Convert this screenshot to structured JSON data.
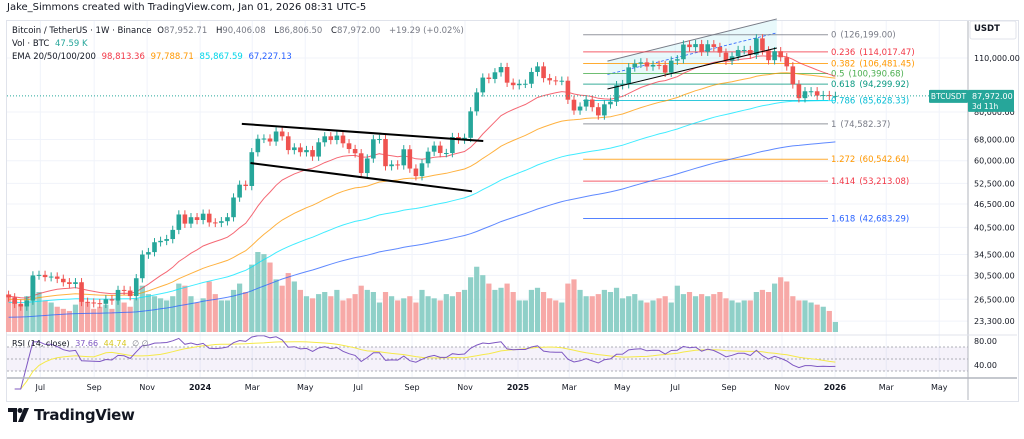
{
  "credit": "Jake_Simmons created with TradingView.com, Jan 01, 2026 08:31 UTC-5",
  "legend": {
    "symbol": "Bitcoin / TetherUS · 1W · Binance",
    "o_label": "O",
    "o": "87,952.71",
    "h_label": "H",
    "h": "90,406.08",
    "l_label": "L",
    "l": "86,806.50",
    "c_label": "C",
    "c": "87,972.00",
    "change": "+19.29 (+0.02%)",
    "vol_label": "Vol · BTC",
    "vol": "47.59 K",
    "ema_label": "EMA 20/50/100/200",
    "ema20": "98,813.36",
    "ema50": "97,788.71",
    "ema100": "85,867.59",
    "ema200": "67,227.13",
    "rsi_label": "RSI (14, close)",
    "rsi": "37.66",
    "rsi_ma": "44.74",
    "rsi_extra": "∅ ∅"
  },
  "currency": "USDT",
  "last_price": {
    "symbol": "BTCUSDT",
    "price": "87,972.00",
    "countdown": "3d 11h"
  },
  "logo": "TradingView",
  "colors": {
    "up": "#26a69a",
    "down": "#ef5350",
    "ema20": "#f23645",
    "ema50": "#ff9800",
    "ema100": "#00e5ff",
    "ema200": "#2962ff",
    "rsi": "#7e57c2",
    "rsi_ma": "#f5e94a"
  },
  "chart_data": {
    "type": "candlestick",
    "scale": "log",
    "interval": "1W",
    "grid": true,
    "price_ticks": [
      "110,000.00",
      "80,000.00",
      "68,000.00",
      "60,000.00",
      "52,500.00",
      "46,500.00",
      "40,500.00",
      "34,500.00",
      "30,500.00",
      "26,500.00",
      "23,300.00"
    ],
    "price_tick_values": [
      110000,
      80000,
      68000,
      60000,
      52500,
      46500,
      40500,
      34500,
      30500,
      26500,
      23300
    ],
    "time_ticks": [
      {
        "label": "Jul",
        "date": "2023-07-01"
      },
      {
        "label": "Sep",
        "date": "2023-09-01"
      },
      {
        "label": "Nov",
        "date": "2023-11-01"
      },
      {
        "label": "2024",
        "date": "2024-01-01",
        "bold": true
      },
      {
        "label": "Mar",
        "date": "2024-03-01"
      },
      {
        "label": "May",
        "date": "2024-05-01"
      },
      {
        "label": "Jul",
        "date": "2024-07-01"
      },
      {
        "label": "Sep",
        "date": "2024-09-01"
      },
      {
        "label": "Nov",
        "date": "2024-11-01"
      },
      {
        "label": "2025",
        "date": "2025-01-01",
        "bold": true
      },
      {
        "label": "Mar",
        "date": "2025-03-01"
      },
      {
        "label": "May",
        "date": "2025-05-01"
      },
      {
        "label": "Jul",
        "date": "2025-07-01"
      },
      {
        "label": "Sep",
        "date": "2025-09-01"
      },
      {
        "label": "Nov",
        "date": "2025-11-01"
      },
      {
        "label": "2026",
        "date": "2026-01-01",
        "bold": true
      },
      {
        "label": "Mar",
        "date": "2026-03-01"
      },
      {
        "label": "May",
        "date": "2026-05-01"
      }
    ],
    "rsi_ticks": [
      "80.00",
      "40.00"
    ],
    "rsi_tick_values": [
      80,
      40
    ],
    "dates": [
      "2023-05-22",
      "2023-05-29",
      "2023-06-05",
      "2023-06-12",
      "2023-06-19",
      "2023-06-26",
      "2023-07-03",
      "2023-07-10",
      "2023-07-17",
      "2023-07-24",
      "2023-07-31",
      "2023-08-07",
      "2023-08-14",
      "2023-08-21",
      "2023-08-28",
      "2023-09-04",
      "2023-09-11",
      "2023-09-18",
      "2023-09-25",
      "2023-10-02",
      "2023-10-09",
      "2023-10-16",
      "2023-10-23",
      "2023-10-30",
      "2023-11-06",
      "2023-11-13",
      "2023-11-20",
      "2023-11-27",
      "2023-12-04",
      "2023-12-11",
      "2023-12-18",
      "2023-12-25",
      "2024-01-01",
      "2024-01-08",
      "2024-01-15",
      "2024-01-22",
      "2024-01-29",
      "2024-02-05",
      "2024-02-12",
      "2024-02-19",
      "2024-02-26",
      "2024-03-04",
      "2024-03-11",
      "2024-03-18",
      "2024-03-25",
      "2024-04-01",
      "2024-04-08",
      "2024-04-15",
      "2024-04-22",
      "2024-04-29",
      "2024-05-06",
      "2024-05-13",
      "2024-05-20",
      "2024-05-27",
      "2024-06-03",
      "2024-06-10",
      "2024-06-17",
      "2024-06-24",
      "2024-07-01",
      "2024-07-08",
      "2024-07-15",
      "2024-07-22",
      "2024-07-29",
      "2024-08-05",
      "2024-08-12",
      "2024-08-19",
      "2024-08-26",
      "2024-09-02",
      "2024-09-09",
      "2024-09-16",
      "2024-09-23",
      "2024-09-30",
      "2024-10-07",
      "2024-10-14",
      "2024-10-21",
      "2024-10-28",
      "2024-11-04",
      "2024-11-11",
      "2024-11-18",
      "2024-11-25",
      "2024-12-02",
      "2024-12-09",
      "2024-12-16",
      "2024-12-23",
      "2024-12-30",
      "2025-01-06",
      "2025-01-13",
      "2025-01-20",
      "2025-01-27",
      "2025-02-03",
      "2025-02-10",
      "2025-02-17",
      "2025-02-24",
      "2025-03-03",
      "2025-03-10",
      "2025-03-17",
      "2025-03-24",
      "2025-03-31",
      "2025-04-07",
      "2025-04-14",
      "2025-04-21",
      "2025-04-28",
      "2025-05-05",
      "2025-05-12",
      "2025-05-19",
      "2025-05-26",
      "2025-06-02",
      "2025-06-09",
      "2025-06-16",
      "2025-06-23",
      "2025-06-30",
      "2025-07-07",
      "2025-07-14",
      "2025-07-21",
      "2025-07-28",
      "2025-08-04",
      "2025-08-11",
      "2025-08-18",
      "2025-08-25",
      "2025-09-01",
      "2025-09-08",
      "2025-09-15",
      "2025-09-22",
      "2025-09-29",
      "2025-10-06",
      "2025-10-13",
      "2025-10-20",
      "2025-10-27",
      "2025-11-03",
      "2025-11-10",
      "2025-11-17",
      "2025-11-24",
      "2025-12-01",
      "2025-12-08",
      "2025-12-15",
      "2025-12-22",
      "2025-12-29"
    ],
    "first_open": 27200,
    "close": [
      26800,
      25800,
      25400,
      26300,
      30500,
      30600,
      30200,
      30300,
      29900,
      29300,
      29000,
      29300,
      26100,
      26000,
      25900,
      25800,
      26500,
      26300,
      28000,
      27900,
      27000,
      30000,
      34500,
      35000,
      37100,
      37400,
      37800,
      39900,
      43700,
      41400,
      43000,
      42300,
      43900,
      41700,
      41600,
      42000,
      43000,
      48300,
      52100,
      51700,
      63100,
      68300,
      68400,
      67200,
      71300,
      69300,
      63900,
      64900,
      63100,
      63900,
      61500,
      66900,
      69300,
      67800,
      69600,
      66500,
      64300,
      62700,
      55800,
      60800,
      68100,
      68200,
      58100,
      58700,
      58400,
      64200,
      57300,
      54800,
      59100,
      63300,
      65600,
      62800,
      62800,
      69000,
      68000,
      68700,
      80300,
      89800,
      98000,
      97200,
      101100,
      104300,
      95100,
      93700,
      94500,
      94500,
      101300,
      104700,
      97700,
      96400,
      96100,
      96200,
      86000,
      80700,
      82600,
      86100,
      82300,
      78400,
      83700,
      85000,
      93700,
      94300,
      104100,
      106400,
      107200,
      104600,
      105600,
      105500,
      100900,
      108300,
      109200,
      119100,
      117300,
      119400,
      114200,
      119300,
      117400,
      113500,
      108300,
      111100,
      115300,
      115300,
      112200,
      123500,
      115000,
      108600,
      114500,
      110500,
      104700,
      94200,
      86800,
      90400,
      90400,
      88100,
      88400,
      87950,
      87972
    ],
    "volume_k": [
      180,
      150,
      130,
      170,
      260,
      190,
      150,
      140,
      120,
      110,
      100,
      130,
      200,
      140,
      110,
      120,
      130,
      110,
      150,
      140,
      120,
      160,
      220,
      180,
      170,
      160,
      150,
      170,
      230,
      220,
      170,
      140,
      160,
      240,
      180,
      150,
      150,
      200,
      230,
      190,
      320,
      380,
      370,
      330,
      250,
      220,
      280,
      240,
      200,
      170,
      160,
      180,
      190,
      170,
      200,
      150,
      160,
      180,
      220,
      200,
      190,
      140,
      190,
      170,
      150,
      160,
      170,
      140,
      200,
      170,
      160,
      150,
      180,
      170,
      190,
      200,
      260,
      310,
      270,
      230,
      200,
      210,
      230,
      190,
      150,
      150,
      200,
      210,
      190,
      160,
      150,
      140,
      230,
      250,
      200,
      170,
      170,
      180,
      200,
      190,
      210,
      160,
      170,
      180,
      150,
      140,
      150,
      160,
      170,
      140,
      220,
      180,
      190,
      170,
      180,
      170,
      180,
      190,
      160,
      150,
      140,
      150,
      150,
      190,
      200,
      190,
      230,
      260,
      240,
      170,
      150,
      150,
      140,
      130,
      120,
      100,
      47.59
    ],
    "ema_periods": [
      20,
      50,
      100,
      200
    ],
    "ema_at_start": [
      27000,
      26500,
      26000,
      23800
    ],
    "fib_levels": [
      {
        "level": "0",
        "price": "126,199.00",
        "value": 126199,
        "color": "#787b86"
      },
      {
        "level": "0.236",
        "price": "114,017.47",
        "value": 114017.47,
        "color": "#f23645"
      },
      {
        "level": "0.382",
        "price": "106,481.45",
        "value": 106481.45,
        "color": "#ff9800"
      },
      {
        "level": "0.5",
        "price": "100,390.68",
        "value": 100390.68,
        "color": "#4caf50"
      },
      {
        "level": "0.618",
        "price": "94,299.92",
        "value": 94299.92,
        "color": "#089981"
      },
      {
        "level": "0.786",
        "price": "85,628.33",
        "value": 85628.33,
        "color": "#00bcd4"
      },
      {
        "level": "1",
        "price": "74,582.37",
        "value": 74582.37,
        "color": "#787b86"
      },
      {
        "level": "1.272",
        "price": "60,542.64",
        "value": 60542.64,
        "color": "#ff9800"
      },
      {
        "level": "1.414",
        "price": "53,213.08",
        "value": 53213.08,
        "color": "#f23645"
      },
      {
        "level": "1.618",
        "price": "42,683.29",
        "value": 42683.29,
        "color": "#2962ff"
      }
    ],
    "fib_start_date": "2025-03-17",
    "trendlines": [
      {
        "name": "falling-channel-top",
        "from": [
          "2024-02-18",
          74600
        ],
        "to": [
          "2024-11-22",
          67400
        ],
        "color": "#000000"
      },
      {
        "name": "falling-channel-bottom",
        "from": [
          "2024-02-28",
          59200
        ],
        "to": [
          "2024-11-09",
          50100
        ],
        "color": "#000000"
      },
      {
        "name": "rising-channel-bottom",
        "from": [
          "2025-04-14",
          91600
        ],
        "to": [
          "2025-10-26",
          116700
        ],
        "color": "#000000"
      }
    ],
    "rising_channel": {
      "from": "2025-04-14",
      "to": "2025-10-26",
      "lower": [
        91600,
        116700
      ],
      "upper": [
        108000,
        138500
      ]
    }
  }
}
